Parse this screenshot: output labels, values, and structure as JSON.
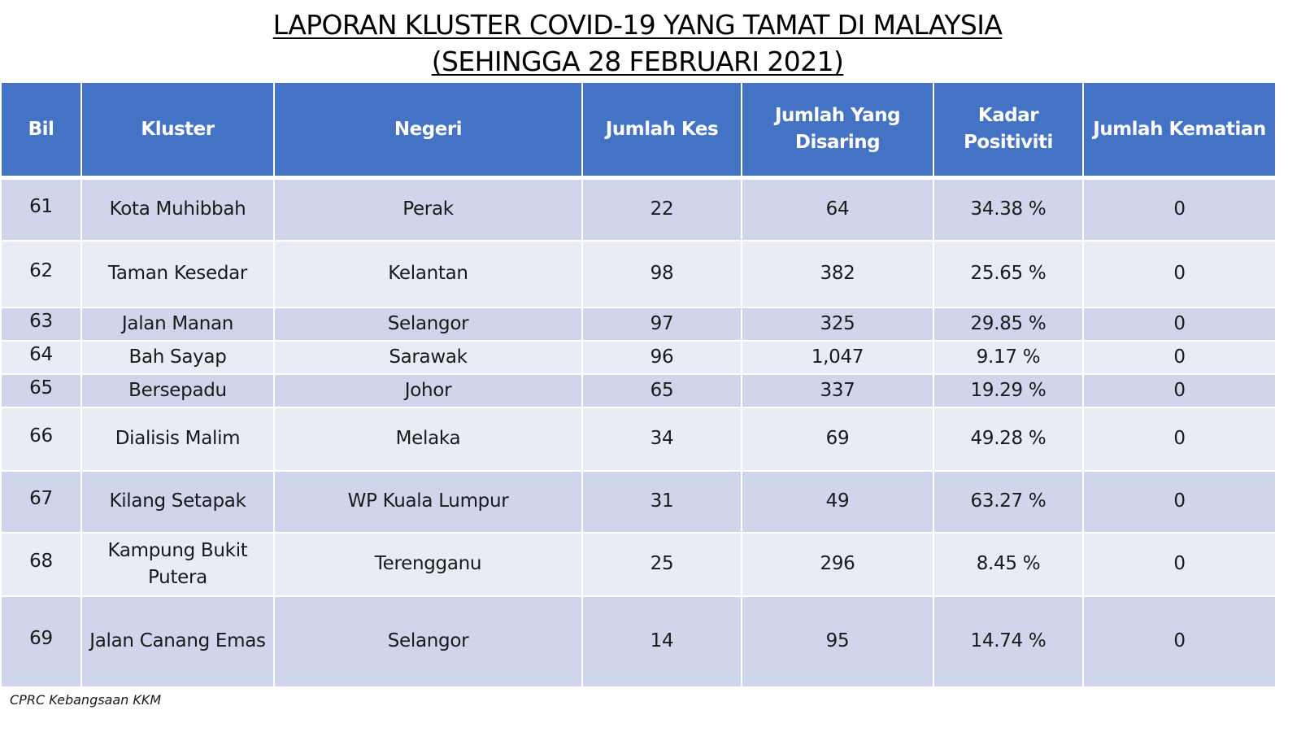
{
  "title": {
    "line1": "LAPORAN KLUSTER COVID-19 YANG TAMAT DI MALAYSIA",
    "line2": "(SEHINGGA  28 FEBRUARI 2021)"
  },
  "table": {
    "headers": {
      "bil": "Bil",
      "kluster": "Kluster",
      "negeri": "Negeri",
      "jumlah_kes": "Jumlah Kes",
      "jumlah_disaring_line1": "Jumlah Yang",
      "jumlah_disaring_line2": "Disaring",
      "kadar_line1": "Kadar",
      "kadar_line2": "Positiviti",
      "jumlah_kematian": "Jumlah Kematian"
    },
    "rows": [
      {
        "bil": "61",
        "kluster": "Kota Muhibbah",
        "negeri": "Perak",
        "kes": "22",
        "disaring": "64",
        "kadar": "34.38 %",
        "kematian": "0"
      },
      {
        "bil": "62",
        "kluster": "Taman Kesedar",
        "negeri": "Kelantan",
        "kes": "98",
        "disaring": "382",
        "kadar": "25.65 %",
        "kematian": "0"
      },
      {
        "bil": "63",
        "kluster": "Jalan Manan",
        "negeri": "Selangor",
        "kes": "97",
        "disaring": "325",
        "kadar": "29.85 %",
        "kematian": "0"
      },
      {
        "bil": "64",
        "kluster": "Bah Sayap",
        "negeri": "Sarawak",
        "kes": "96",
        "disaring": "1,047",
        "kadar": "9.17 %",
        "kematian": "0"
      },
      {
        "bil": "65",
        "kluster": "Bersepadu",
        "negeri": "Johor",
        "kes": "65",
        "disaring": "337",
        "kadar": "19.29 %",
        "kematian": "0"
      },
      {
        "bil": "66",
        "kluster": "Dialisis Malim",
        "negeri": "Melaka",
        "kes": "34",
        "disaring": "69",
        "kadar": "49.28 %",
        "kematian": "0"
      },
      {
        "bil": "67",
        "kluster": "Kilang Setapak",
        "negeri": "WP Kuala Lumpur",
        "kes": "31",
        "disaring": "49",
        "kadar": "63.27 %",
        "kematian": "0"
      },
      {
        "bil": "68",
        "kluster_line1": "Kampung Bukit",
        "kluster_line2": "Putera",
        "negeri": "Terengganu",
        "kes": "25",
        "disaring": "296",
        "kadar": "8.45 %",
        "kematian": "0"
      },
      {
        "bil": "69",
        "kluster": "Jalan Canang Emas",
        "negeri": "Selangor",
        "kes": "14",
        "disaring": "95",
        "kadar": "14.74 %",
        "kematian": "0"
      }
    ]
  },
  "footer": "CPRC Kebangsaan KKM",
  "colors": {
    "header_bg": "#4472c4",
    "row_dark": "#cfd5ea",
    "row_light": "#e9ebf5"
  }
}
